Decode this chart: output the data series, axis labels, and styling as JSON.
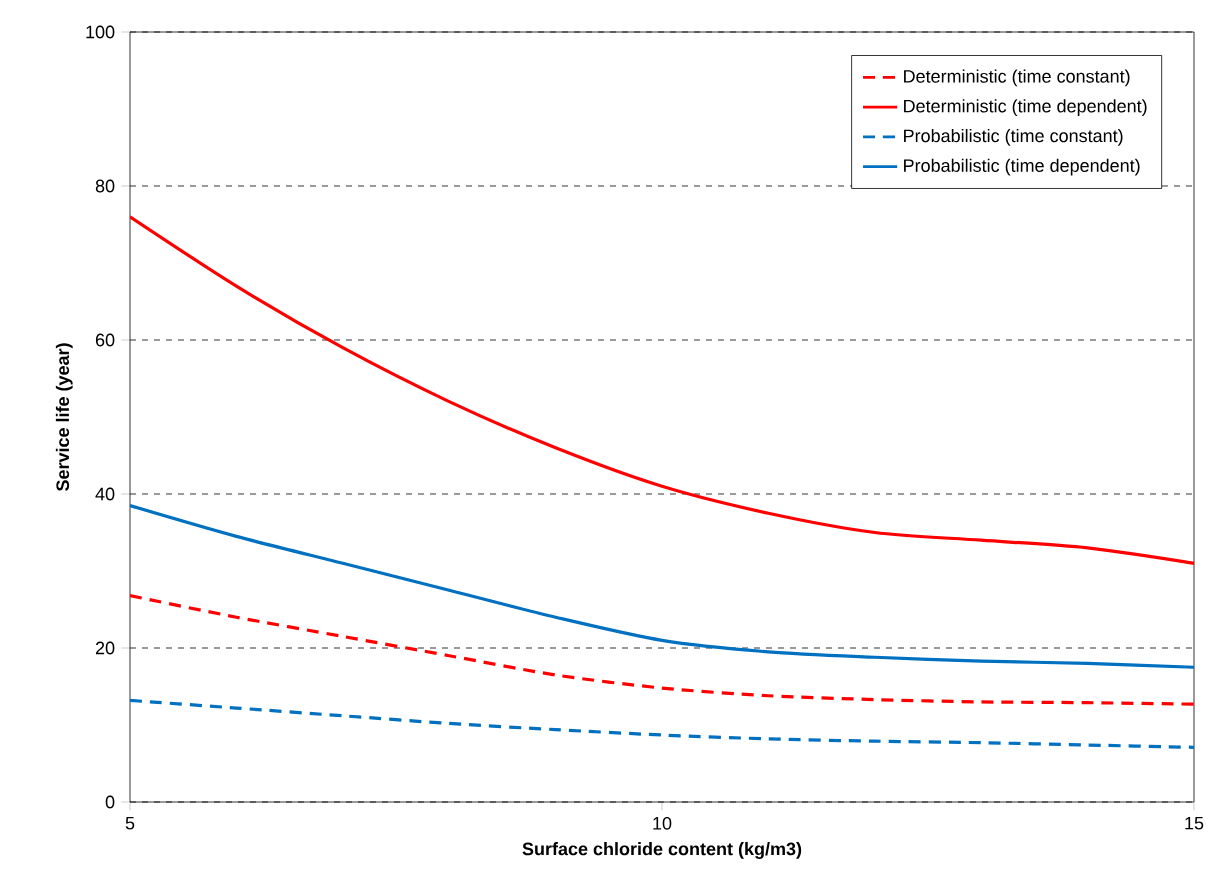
{
  "chart_data": {
    "type": "line",
    "xlabel": "Surface chloride content (kg/m3)",
    "ylabel": "Service life (year)",
    "xlim": [
      5,
      15
    ],
    "xticks": [
      5,
      10,
      15
    ],
    "ylim": [
      0,
      100
    ],
    "yticks": [
      0,
      20,
      40,
      60,
      80,
      100
    ],
    "grid": "y",
    "legend": "top right",
    "marker": "none",
    "x": [
      5,
      6,
      7,
      8,
      9,
      10,
      11,
      12,
      13,
      14,
      15
    ],
    "series": [
      {
        "name": "Deterministic (time constant)",
        "color": "#ff0000",
        "line_style": "dashed",
        "values": [
          26.8,
          24,
          21.5,
          19,
          16.5,
          14.8,
          13.8,
          13.3,
          13,
          12.9,
          12.7
        ]
      },
      {
        "name": "Deterministic (time dependent)",
        "color": "#ff0000",
        "line_style": "solid",
        "values": [
          76,
          67,
          59,
          52,
          46,
          41,
          37.5,
          35,
          34,
          33,
          31
        ]
      },
      {
        "name": "Probabilistic (time constant)",
        "color": "#0070c0",
        "line_style": "dashed",
        "values": [
          13.2,
          12.2,
          11.2,
          10.2,
          9.4,
          8.7,
          8.2,
          7.9,
          7.7,
          7.4,
          7.1
        ]
      },
      {
        "name": "Probabilistic (time dependent)",
        "color": "#0070c0",
        "line_style": "solid",
        "values": [
          38.5,
          34.5,
          31,
          27.5,
          24,
          21,
          19.5,
          18.8,
          18.3,
          18,
          17.5
        ]
      }
    ]
  }
}
